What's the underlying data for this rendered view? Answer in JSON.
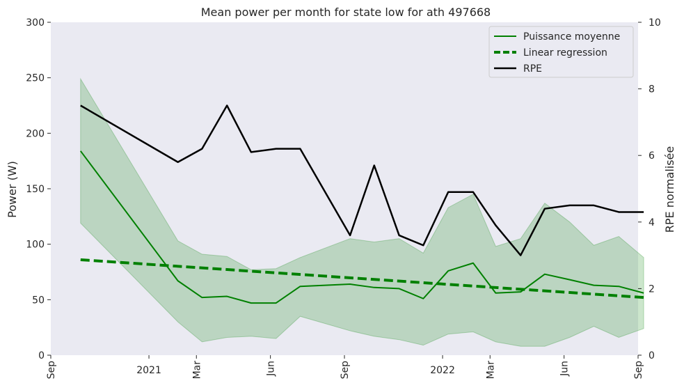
{
  "chart_data": {
    "type": "line",
    "title": "Mean power per month for state low for ath 497668",
    "xlabel": "",
    "ylabel": "Power (W)",
    "ylabel_right": "RPE normalisée",
    "ylim": [
      0,
      300
    ],
    "ylim_right": [
      0,
      10
    ],
    "xlim": [
      "2020-09-01",
      "2022-09-01"
    ],
    "y_ticks": [
      "0",
      "50",
      "100",
      "150",
      "200",
      "250",
      "300"
    ],
    "y_ticks_right": [
      "0",
      "2",
      "4",
      "6",
      "8",
      "10"
    ],
    "x_ticks": [
      {
        "date": "2020-09-01",
        "label": "Sep",
        "rotated": true
      },
      {
        "date": "2021-01-01",
        "label": "2021",
        "rotated": false
      },
      {
        "date": "2021-03-01",
        "label": "Mar",
        "rotated": true
      },
      {
        "date": "2021-06-01",
        "label": "Jun",
        "rotated": true
      },
      {
        "date": "2021-09-01",
        "label": "Sep",
        "rotated": true
      },
      {
        "date": "2022-01-01",
        "label": "2022",
        "rotated": false
      },
      {
        "date": "2022-03-01",
        "label": "Mar",
        "rotated": true
      },
      {
        "date": "2022-06-01",
        "label": "Jun",
        "rotated": true
      },
      {
        "date": "2022-09-01",
        "label": "Sep",
        "rotated": true
      }
    ],
    "grid": false,
    "legend_position": "top-right",
    "series": [
      {
        "name": "Puissance moyenne",
        "axis": "left",
        "color": "#008000",
        "style": "solid",
        "x": [
          "2020-10-08",
          "2021-02-06",
          "2021-03-08",
          "2021-04-08",
          "2021-05-08",
          "2021-06-08",
          "2021-07-08",
          "2021-09-08",
          "2021-10-08",
          "2021-11-08",
          "2021-12-08",
          "2022-01-08",
          "2022-02-08",
          "2022-03-08",
          "2022-04-08",
          "2022-05-08",
          "2022-06-08",
          "2022-07-08",
          "2022-08-08",
          "2022-09-08"
        ],
        "values": [
          184,
          67,
          52,
          53,
          47,
          47,
          62,
          64,
          61,
          60,
          51,
          76,
          83,
          56,
          57,
          73,
          68,
          63,
          62,
          56
        ]
      },
      {
        "name": "Linear regression",
        "axis": "left",
        "color": "#008000",
        "style": "dashed",
        "x": [
          "2020-10-08",
          "2022-09-08"
        ],
        "values": [
          86,
          52
        ]
      },
      {
        "name": "RPE",
        "axis": "right",
        "color": "#000000",
        "style": "solid",
        "x": [
          "2020-10-08",
          "2021-02-06",
          "2021-03-08",
          "2021-04-08",
          "2021-05-08",
          "2021-06-08",
          "2021-07-08",
          "2021-09-08",
          "2021-10-08",
          "2021-11-08",
          "2021-12-08",
          "2022-01-08",
          "2022-02-08",
          "2022-03-08",
          "2022-04-08",
          "2022-05-08",
          "2022-06-08",
          "2022-07-08",
          "2022-08-08",
          "2022-09-08"
        ],
        "values": [
          7.5,
          5.8,
          6.2,
          7.5,
          6.1,
          6.2,
          6.2,
          3.6,
          5.7,
          3.6,
          3.3,
          4.9,
          4.9,
          3.9,
          3.0,
          4.4,
          4.5,
          4.5,
          4.3,
          4.3
        ]
      }
    ],
    "band": {
      "axis": "left",
      "color": "#008000",
      "opacity": 0.2,
      "x": [
        "2020-10-08",
        "2021-02-06",
        "2021-03-08",
        "2021-04-08",
        "2021-05-08",
        "2021-06-08",
        "2021-07-08",
        "2021-09-08",
        "2021-10-08",
        "2021-11-08",
        "2021-12-08",
        "2022-01-08",
        "2022-02-08",
        "2022-03-08",
        "2022-04-08",
        "2022-05-08",
        "2022-06-08",
        "2022-07-08",
        "2022-08-08",
        "2022-09-08"
      ],
      "upper": [
        249,
        103,
        91,
        89,
        77,
        78,
        88,
        105,
        102,
        105,
        92,
        133,
        145,
        98,
        105,
        137,
        120,
        99,
        107,
        88
      ],
      "lower": [
        119,
        30,
        12,
        16,
        17,
        15,
        35,
        22,
        17,
        14,
        9,
        19,
        21,
        12,
        8,
        8,
        16,
        26,
        16,
        24
      ]
    }
  }
}
